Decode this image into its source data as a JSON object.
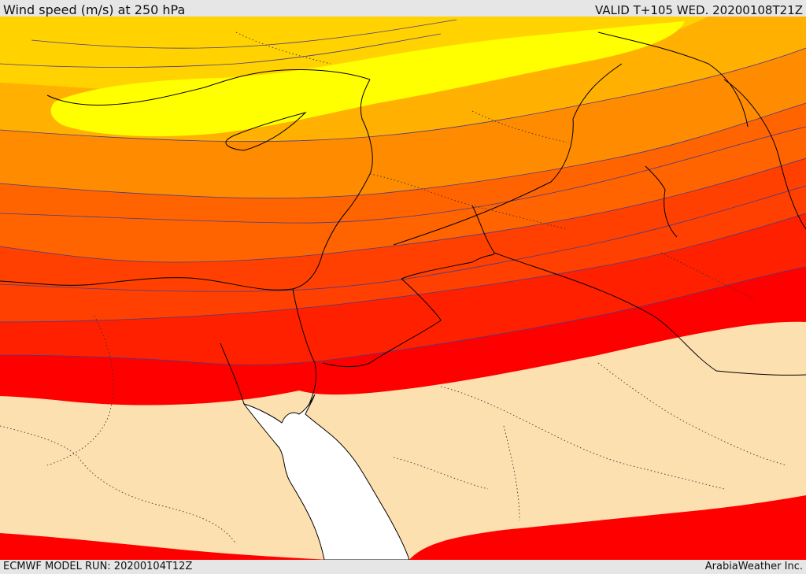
{
  "header": {
    "title": "Wind speed (m/s) at 250 hPa",
    "valid": "VALID T+105 WED. 20200108T21Z"
  },
  "footer": {
    "model_run": "ECMWF MODEL RUN: 20200104T12Z",
    "credit": "ArabiaWeather Inc."
  },
  "map": {
    "field": "wind speed at 250 hPa",
    "color_scale": [
      "#fde0b0",
      "#ff0000",
      "#ff2000",
      "#ff4000",
      "#ff6400",
      "#ff8c00",
      "#ffb000",
      "#ffd200",
      "#ffff00"
    ],
    "sea_fill": "#ffffff",
    "contour_color": "#4a3a8a",
    "border_color": "#000000"
  }
}
